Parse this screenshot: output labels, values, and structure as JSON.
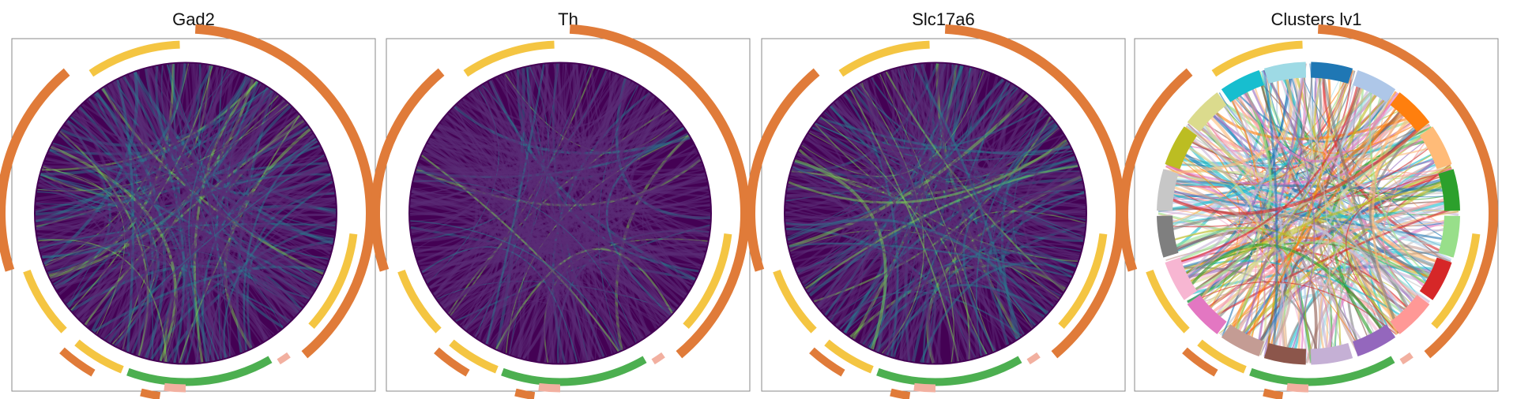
{
  "panels": [
    {
      "title": "Gad2"
    },
    {
      "title": "Th"
    },
    {
      "title": "Slc17a6"
    },
    {
      "title": "Clusters lv1"
    }
  ]
}
